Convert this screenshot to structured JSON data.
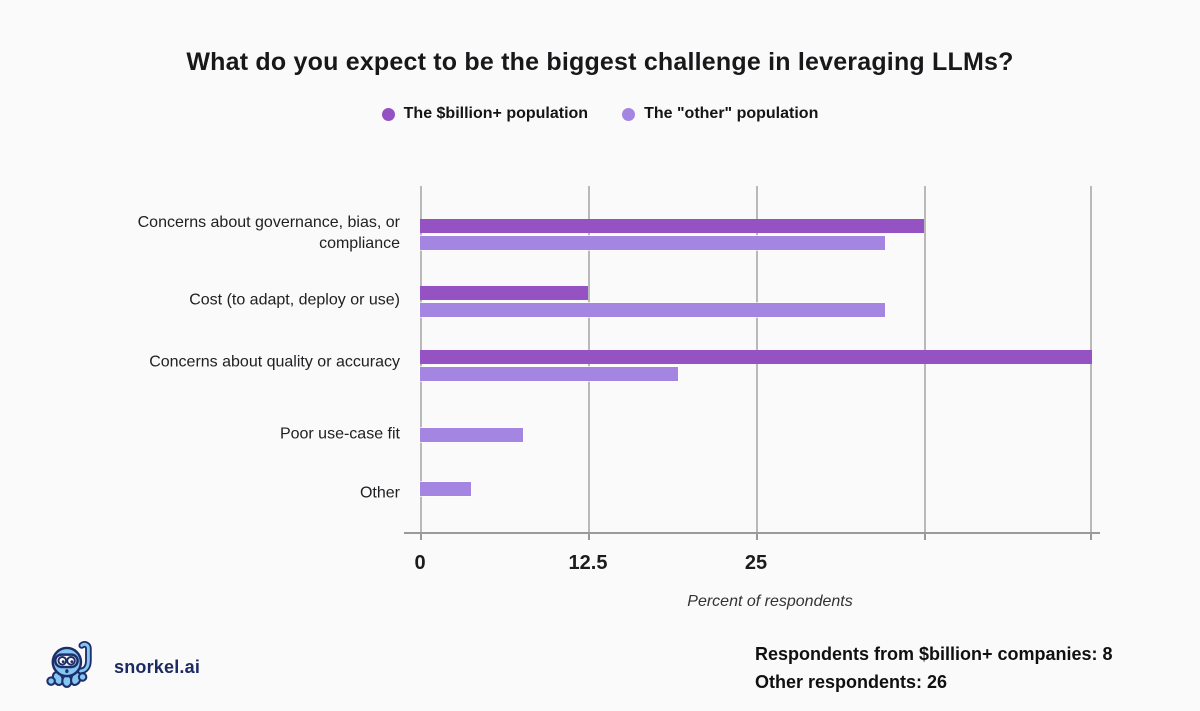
{
  "title": "What do you expect to be the biggest challenge in leveraging LLMs?",
  "legend": [
    {
      "label": "The $billion+ population",
      "color": "#9452c2"
    },
    {
      "label": "The \"other\" population",
      "color": "#a486e2"
    }
  ],
  "chart_data": {
    "type": "bar",
    "orientation": "horizontal",
    "title": "What do you expect to be the biggest challenge in leveraging LLMs?",
    "categories": [
      "Concerns about governance, bias, or\ncompliance",
      "Cost (to adapt, deploy or use)",
      "Concerns about quality or accuracy",
      "Poor use-case fit",
      "Other"
    ],
    "series": [
      {
        "name": "The $billion+ population",
        "color": "#9452c2",
        "values": [
          37.5,
          12.5,
          50,
          0,
          0
        ]
      },
      {
        "name": "The \"other\" population",
        "color": "#a486e2",
        "values": [
          34.6,
          34.6,
          19.2,
          7.7,
          3.8
        ]
      }
    ],
    "xlabel": "Percent of respondents",
    "ylabel": "",
    "xlim": [
      0,
      50
    ],
    "x_ticks": [
      {
        "value": 0,
        "label": "0"
      },
      {
        "value": 12.5,
        "label": "12.5"
      },
      {
        "value": 25,
        "label": "25"
      },
      {
        "value": 37.5,
        "label": ""
      },
      {
        "value": 50,
        "label": ""
      }
    ],
    "grid": true,
    "legend_position": "top"
  },
  "footer": {
    "brand": "snorkel.ai",
    "stats": [
      "Respondents from $billion+ companies: 8",
      "Other respondents: 26"
    ]
  },
  "colors": {
    "background": "#fbfafa",
    "series_dark": "#9452c2",
    "series_light": "#a486e2",
    "gridline": "#b9b9b9",
    "axis_line": "#9a9a9a",
    "brand_navy": "#1b2a63"
  }
}
